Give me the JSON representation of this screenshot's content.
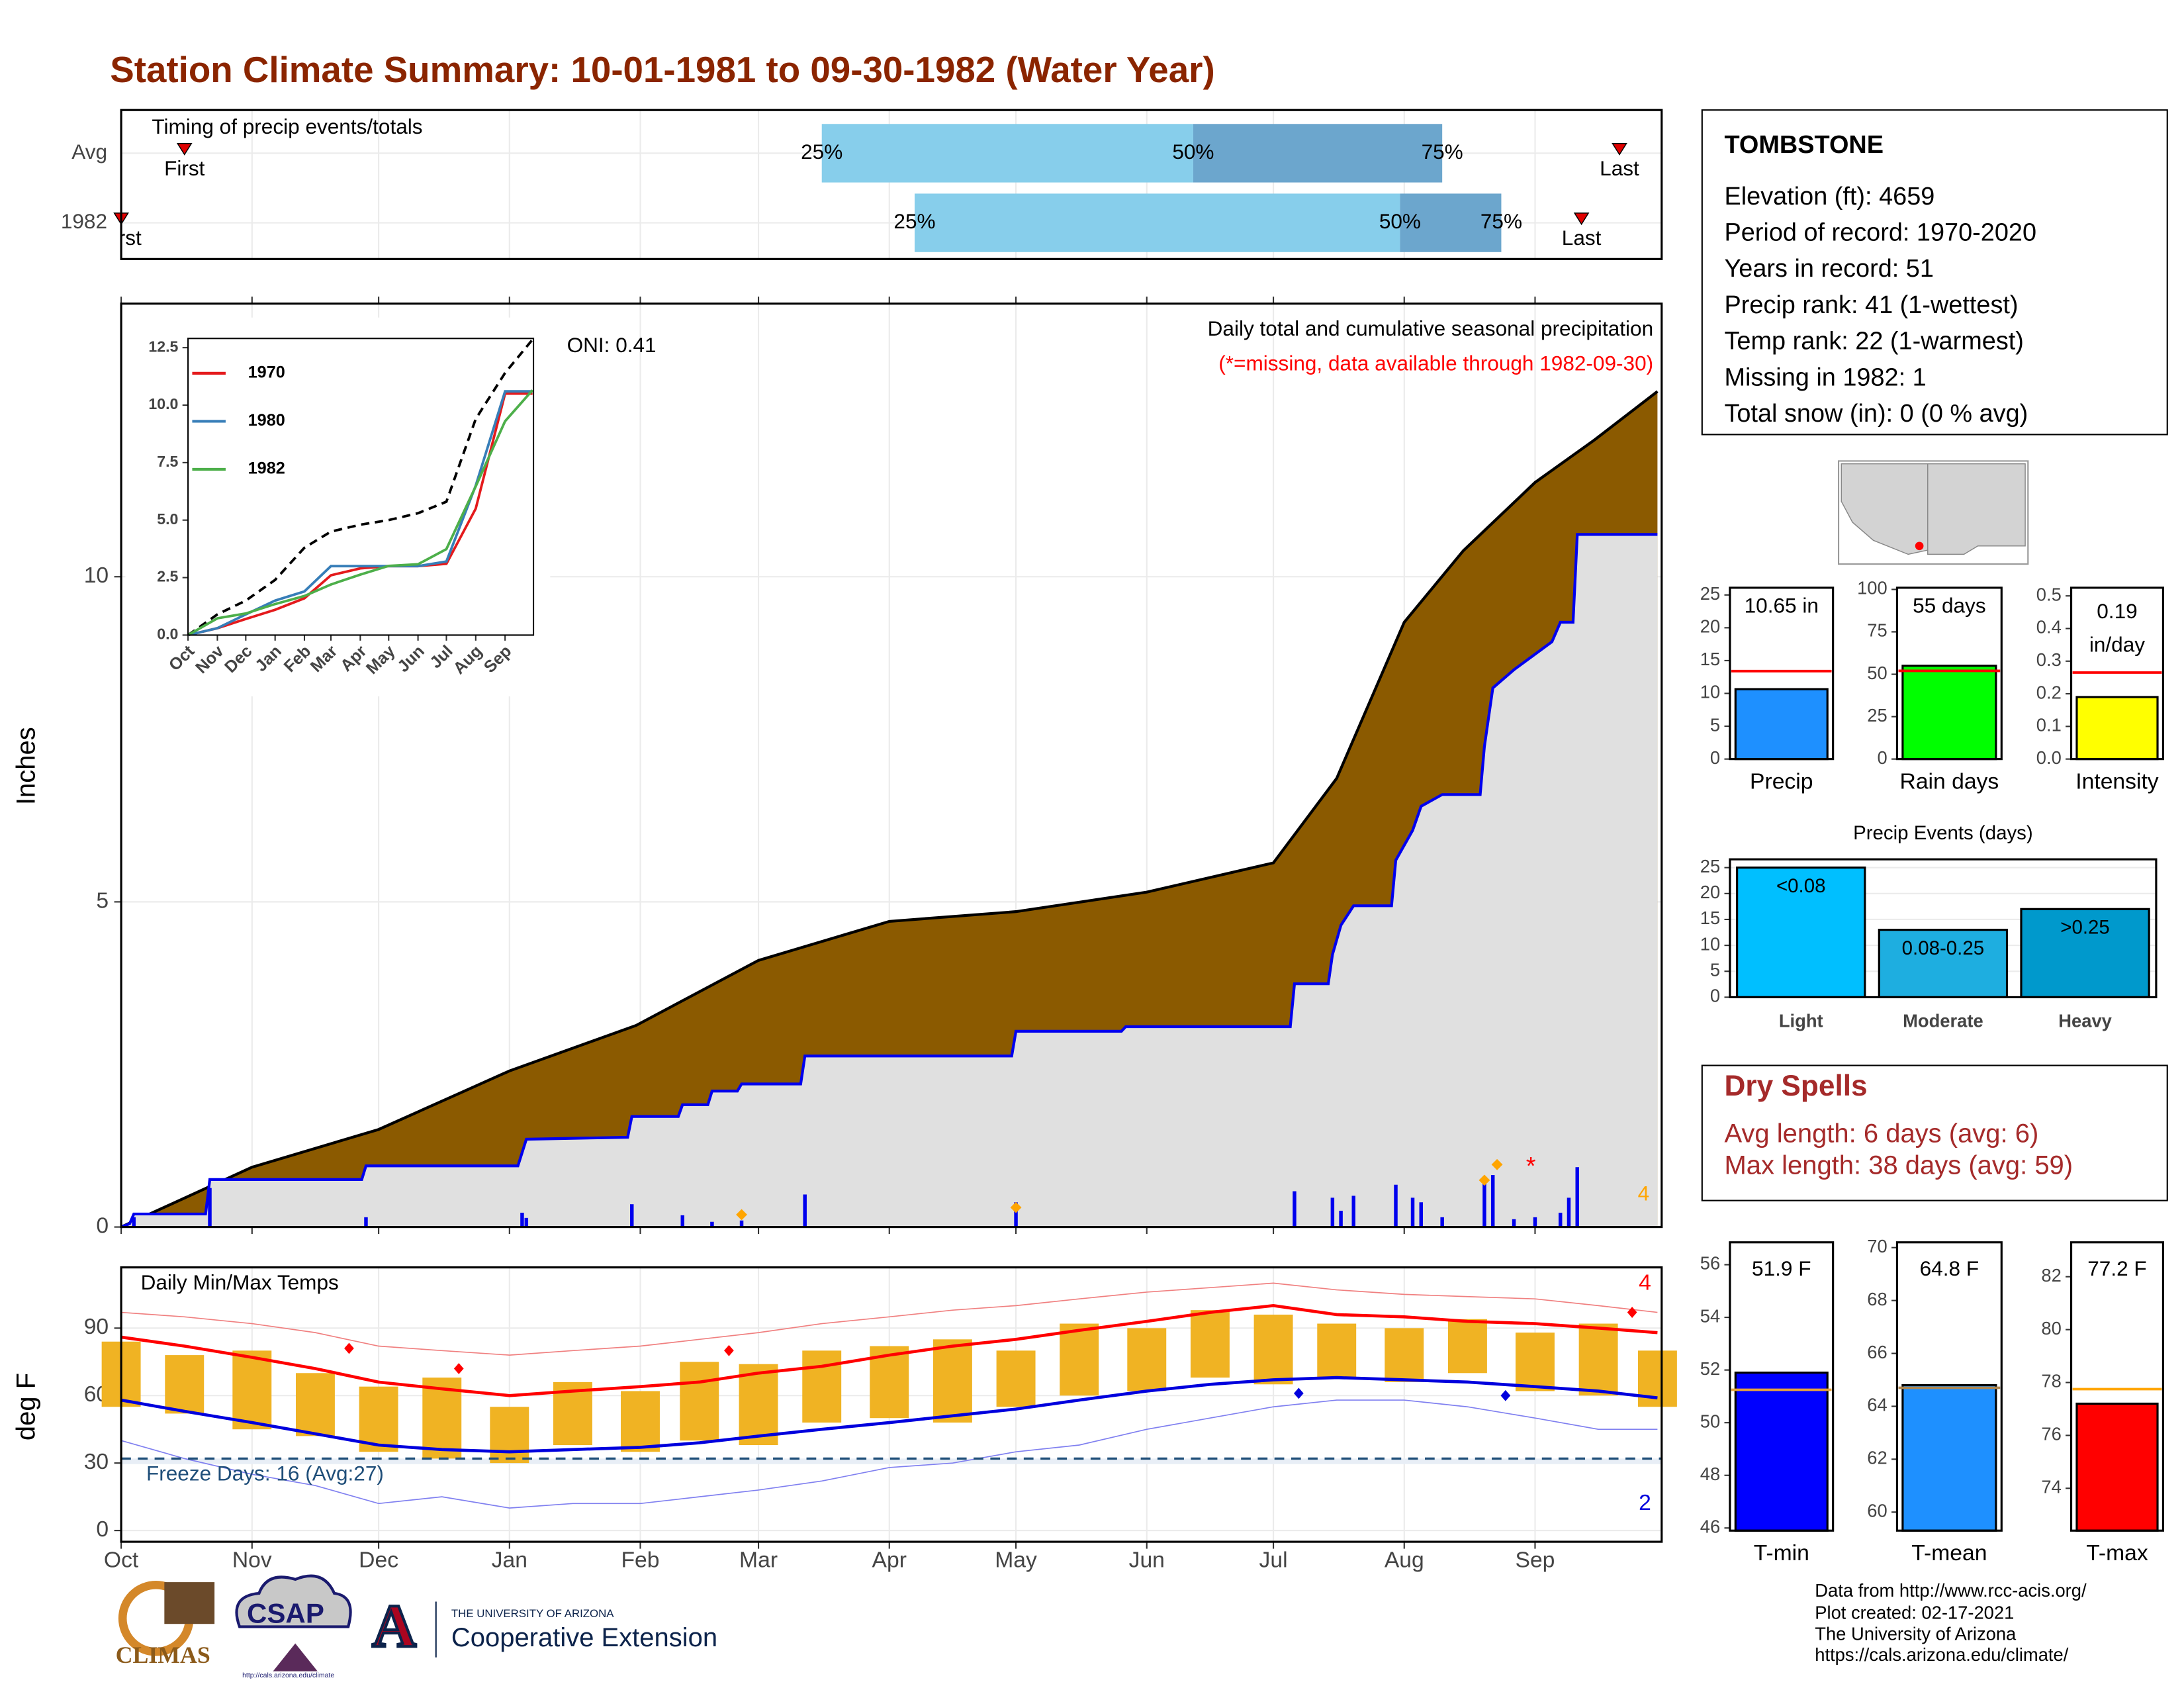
{
  "title": "Station Climate Summary: 10-01-1981 to 09-30-1982 (Water Year)",
  "station": {
    "name": "TOMBSTONE",
    "lines": [
      "Elevation (ft): 4659",
      "Period of record: 1970-2020",
      "Years in record: 51",
      "Precip rank: 41 (1-wettest)",
      "Temp rank: 22 (1-warmest)",
      "Missing in 1982: 1",
      "Total snow (in): 0 (0 % avg)"
    ]
  },
  "dry_spells": {
    "title": "Dry Spells",
    "lines": [
      "Avg length: 6 days (avg: 6)",
      "Max length: 38 days (avg: 59)"
    ]
  },
  "footer": [
    "Data from http://www.rcc-acis.org/",
    "Plot created: 02-17-2021",
    "The University of Arizona",
    "https://cals.arizona.edu/climate/"
  ],
  "logos": {
    "climas": "CLIMAS",
    "csap": "CSAP",
    "csap_url": "http://cals.arizona.edu/climate",
    "ua_mark": "A",
    "ua": "THE UNIVERSITY OF ARIZONA",
    "extension": "Cooperative Extension"
  },
  "chart_data": [
    {
      "type": "range",
      "title": "Timing of precip events/totals",
      "xlim": [
        0,
        365
      ],
      "xticks": [
        0,
        31,
        61,
        92,
        123,
        151,
        182,
        212,
        243,
        273,
        304,
        335
      ],
      "rows": [
        {
          "label": "Avg",
          "first": 15,
          "q25": 166,
          "q50": 254,
          "q75": 313,
          "last": 355
        },
        {
          "label": "1982",
          "first": 0,
          "q25": 188,
          "q50": 303,
          "q75": 327,
          "last": 346
        }
      ],
      "marker_labels": {
        "first": "First",
        "q25": "25%",
        "q50": "50%",
        "q75": "75%",
        "last": "Last"
      },
      "colors": {
        "early": "#87ceeb",
        "late": "#6ca6cd",
        "marker": "#e00000"
      }
    },
    {
      "type": "area",
      "title": "Daily total and cumulative seasonal precipitation",
      "subtitle": "(*=missing, data available through 1982-09-30)",
      "annotation": "ONI: 0.41",
      "ylabel": "Inches",
      "xlim": [
        0,
        365
      ],
      "ylim": [
        0,
        14.2
      ],
      "yticks": [
        0,
        5,
        10
      ],
      "xticks": [
        0,
        31,
        61,
        92,
        123,
        151,
        182,
        212,
        243,
        273,
        304,
        335
      ],
      "grid": true,
      "average": {
        "x": [
          0,
          31,
          61,
          92,
          122,
          151,
          182,
          212,
          243,
          273,
          288,
          304,
          318,
          335,
          349,
          364
        ],
        "values": [
          0,
          0.92,
          1.5,
          2.4,
          3.1,
          4.1,
          4.7,
          4.85,
          5.15,
          5.6,
          6.9,
          9.3,
          10.4,
          11.45,
          12.1,
          12.85
        ],
        "color": "#8b5a00"
      },
      "observed": {
        "x": [
          0,
          2,
          3,
          20,
          21,
          57,
          58,
          94,
          96,
          120,
          121,
          132,
          133,
          139,
          140,
          146,
          147,
          161,
          162,
          211,
          212,
          237,
          238,
          277,
          278,
          286,
          287,
          289,
          292,
          301,
          302,
          306,
          308,
          313,
          322,
          323,
          325,
          330,
          339,
          341,
          344,
          345,
          364
        ],
        "values": [
          0,
          0.05,
          0.2,
          0.2,
          0.73,
          0.73,
          0.94,
          0.94,
          1.35,
          1.38,
          1.7,
          1.7,
          1.88,
          1.88,
          2.09,
          2.09,
          2.2,
          2.2,
          2.63,
          2.63,
          3.01,
          3.01,
          3.08,
          3.08,
          3.74,
          3.74,
          4.19,
          4.64,
          4.94,
          4.94,
          5.64,
          6.1,
          6.47,
          6.65,
          6.65,
          7.39,
          8.29,
          8.57,
          9.0,
          9.3,
          9.3,
          10.65,
          10.65
        ],
        "color": "#0000ee",
        "fill": "#e0e0e0"
      },
      "daily": {
        "x": [
          3,
          21,
          58,
          95,
          96,
          121,
          133,
          140,
          147,
          162,
          212,
          278,
          287,
          289,
          292,
          302,
          306,
          308,
          313,
          323,
          325,
          330,
          335,
          341,
          343,
          345
        ],
        "values": [
          0.15,
          0.6,
          0.15,
          0.22,
          0.14,
          0.35,
          0.18,
          0.08,
          0.1,
          0.5,
          0.38,
          0.55,
          0.45,
          0.25,
          0.48,
          0.65,
          0.45,
          0.38,
          0.15,
          0.7,
          0.8,
          0.12,
          0.15,
          0.22,
          0.45,
          0.92
        ],
        "color": "#0000ee"
      },
      "extremes": {
        "x": [
          147,
          212,
          323,
          326
        ],
        "values": [
          0.19,
          0.3,
          0.72,
          0.96
        ],
        "color": "#ffa500",
        "count": 4
      },
      "missing": {
        "x": [
          334
        ],
        "values": [
          1.0
        ],
        "label": "*",
        "color": "#ff0000"
      }
    },
    {
      "type": "line",
      "xlim": [
        0,
        365
      ],
      "ylim": [
        0,
        12.9
      ],
      "xticks": [
        {
          "value": 0,
          "label": "Oct"
        },
        {
          "value": 31,
          "label": "Nov"
        },
        {
          "value": 61,
          "label": "Dec"
        },
        {
          "value": 92,
          "label": "Jan"
        },
        {
          "value": 123,
          "label": "Feb"
        },
        {
          "value": 151,
          "label": "Mar"
        },
        {
          "value": 182,
          "label": "Apr"
        },
        {
          "value": 212,
          "label": "May"
        },
        {
          "value": 243,
          "label": "Jun"
        },
        {
          "value": 273,
          "label": "Jul"
        },
        {
          "value": 304,
          "label": "Aug"
        },
        {
          "value": 335,
          "label": "Sep"
        }
      ],
      "yticks": [
        {
          "value": 0,
          "label": "0.0"
        },
        2.5,
        {
          "value": 5,
          "label": "5.0"
        },
        7.5,
        {
          "value": 10,
          "label": "10.0"
        },
        12.5
      ],
      "x": [
        0,
        31,
        61,
        92,
        123,
        151,
        182,
        212,
        243,
        273,
        304,
        335,
        364
      ],
      "average": {
        "values": [
          0,
          0.9,
          1.5,
          2.4,
          3.8,
          4.5,
          4.8,
          5.0,
          5.3,
          5.8,
          9.4,
          11.4,
          12.85
        ],
        "color": "#000000"
      },
      "series": [
        {
          "name": "1970",
          "color": "#e41a1c",
          "values": [
            0,
            0.3,
            0.7,
            1.1,
            1.6,
            2.6,
            2.9,
            3.0,
            3.0,
            3.1,
            5.5,
            10.5,
            10.5
          ]
        },
        {
          "name": "1980",
          "color": "#377eb8",
          "values": [
            0,
            0.3,
            0.9,
            1.5,
            1.9,
            3.0,
            3.0,
            3.0,
            3.0,
            3.2,
            6.5,
            10.6,
            10.6
          ]
        },
        {
          "name": "1982",
          "color": "#4daf4a",
          "values": [
            0,
            0.73,
            0.94,
            1.35,
            1.7,
            2.2,
            2.63,
            3.01,
            3.08,
            3.74,
            6.47,
            9.3,
            10.65
          ]
        }
      ]
    },
    {
      "type": "range",
      "title": "Daily Min/Max Temps",
      "ylabel": "deg F",
      "xlim": [
        0,
        365
      ],
      "ylim": [
        -5,
        117
      ],
      "yticks": [
        0,
        30,
        60,
        90
      ],
      "grid": true,
      "xticks": [
        {
          "value": 0,
          "label": "Oct"
        },
        {
          "value": 31,
          "label": "Nov"
        },
        {
          "value": 61,
          "label": "Dec"
        },
        {
          "value": 92,
          "label": "Jan"
        },
        {
          "value": 123,
          "label": "Feb"
        },
        {
          "value": 151,
          "label": "Mar"
        },
        {
          "value": 182,
          "label": "Apr"
        },
        {
          "value": 212,
          "label": "May"
        },
        {
          "value": 243,
          "label": "Jun"
        },
        {
          "value": 273,
          "label": "Jul"
        },
        {
          "value": 304,
          "label": "Aug"
        },
        {
          "value": 335,
          "label": "Sep"
        }
      ],
      "x": [
        0,
        15,
        31,
        46,
        61,
        76,
        92,
        107,
        123,
        137,
        151,
        166,
        182,
        197,
        212,
        227,
        243,
        258,
        273,
        288,
        304,
        319,
        335,
        350,
        364
      ],
      "daily_max": [
        84,
        78,
        80,
        70,
        64,
        68,
        55,
        66,
        62,
        75,
        74,
        80,
        82,
        85,
        80,
        92,
        90,
        98,
        96,
        92,
        90,
        94,
        88,
        92,
        80
      ],
      "daily_min": [
        55,
        52,
        45,
        42,
        35,
        32,
        30,
        38,
        35,
        40,
        38,
        48,
        50,
        48,
        55,
        60,
        62,
        68,
        65,
        68,
        66,
        70,
        62,
        60,
        55
      ],
      "avg_max": [
        86,
        82,
        77,
        72,
        66,
        63,
        60,
        62,
        64,
        66,
        70,
        73,
        78,
        82,
        85,
        89,
        93,
        97,
        100,
        96,
        95,
        93,
        92,
        90,
        88
      ],
      "avg_min": [
        58,
        53,
        48,
        43,
        38,
        36,
        35,
        36,
        37,
        39,
        42,
        45,
        48,
        51,
        54,
        58,
        62,
        65,
        67,
        68,
        67,
        66,
        64,
        62,
        59
      ],
      "record_max": [
        97,
        95,
        92,
        88,
        82,
        80,
        78,
        80,
        82,
        85,
        88,
        92,
        95,
        98,
        100,
        103,
        106,
        108,
        110,
        107,
        105,
        104,
        103,
        100,
        97
      ],
      "record_min": [
        40,
        32,
        25,
        20,
        12,
        15,
        10,
        12,
        12,
        15,
        18,
        22,
        28,
        30,
        35,
        38,
        45,
        50,
        55,
        58,
        58,
        55,
        50,
        45,
        45
      ],
      "record_highs": {
        "x": [
          54,
          80,
          144,
          358
        ],
        "values": [
          81,
          72,
          80,
          97
        ],
        "count": 4
      },
      "record_lows": {
        "x": [
          279,
          328
        ],
        "values": [
          61,
          60
        ],
        "count": 2
      },
      "freeze_threshold": 32,
      "freeze_text": "Freeze Days: 16 (Avg:27)",
      "colors": {
        "daily": "#f0b323",
        "max": "#ff0000",
        "min": "#0000dd",
        "record_max": "#f08080",
        "record_min": "#8080f0",
        "freeze": "#1f4e79"
      }
    },
    {
      "type": "bar",
      "categories": [
        "Precip"
      ],
      "values": [
        10.65
      ],
      "value_labels": [
        "10.65 in"
      ],
      "average": 13.4,
      "ylim": [
        0,
        26.1
      ],
      "yticks": [
        0,
        5,
        10,
        15,
        20,
        25
      ],
      "color": "#1e90ff",
      "average_color": "#ff0000"
    },
    {
      "type": "bar",
      "categories": [
        "Rain days"
      ],
      "values": [
        55
      ],
      "value_labels": [
        "55 days"
      ],
      "average": 52,
      "ylim": [
        0,
        101
      ],
      "yticks": [
        0,
        25,
        50,
        75,
        100
      ],
      "color": "#00ff00",
      "average_color": "#ff0000"
    },
    {
      "type": "bar",
      "categories": [
        "Intensity"
      ],
      "values": [
        0.19
      ],
      "value_labels": [
        [
          "0.19",
          "in/day"
        ]
      ],
      "average": 0.265,
      "ylim": [
        0,
        0.525
      ],
      "yticks": [
        {
          "value": 0,
          "label": "0.0"
        },
        0.1,
        0.2,
        0.3,
        0.4,
        0.5
      ],
      "color": "#ffff00",
      "average_color": "#ff0000"
    },
    {
      "type": "bar",
      "title": "Precip Events (days)",
      "categories": [
        "Light",
        "Moderate",
        "Heavy"
      ],
      "values": [
        25,
        13,
        17
      ],
      "bar_labels": [
        "<0.08",
        "0.08-0.25",
        ">0.25"
      ],
      "ylim": [
        0,
        26.6
      ],
      "yticks": [
        0,
        5,
        10,
        15,
        20,
        25
      ],
      "colors": [
        "#00bfff",
        "#1eaee0",
        "#0099cc"
      ],
      "grid": true
    },
    {
      "type": "bar",
      "categories": [
        "T-min"
      ],
      "values": [
        51.9
      ],
      "value_labels": [
        "51.9 F"
      ],
      "average": 51.25,
      "ylim": [
        45.9,
        56.85
      ],
      "yticks": [
        46,
        48,
        50,
        52,
        54,
        56
      ],
      "color": "#0000ff",
      "average_color": "#e8a33c"
    },
    {
      "type": "bar",
      "categories": [
        "T-mean"
      ],
      "values": [
        64.8
      ],
      "value_labels": [
        "64.8 F"
      ],
      "average": 64.7,
      "ylim": [
        59.3,
        70.2
      ],
      "yticks": [
        60,
        62,
        64,
        66,
        68,
        70
      ],
      "color": "#1e90ff",
      "average_color": "#b08850"
    },
    {
      "type": "bar",
      "categories": [
        "T-max"
      ],
      "values": [
        77.2
      ],
      "value_labels": [
        "77.2 F"
      ],
      "average": 77.75,
      "ylim": [
        72.4,
        83.3
      ],
      "yticks": [
        74,
        76,
        78,
        80,
        82
      ],
      "color": "#ff0000",
      "average_color": "#ffa500"
    }
  ]
}
